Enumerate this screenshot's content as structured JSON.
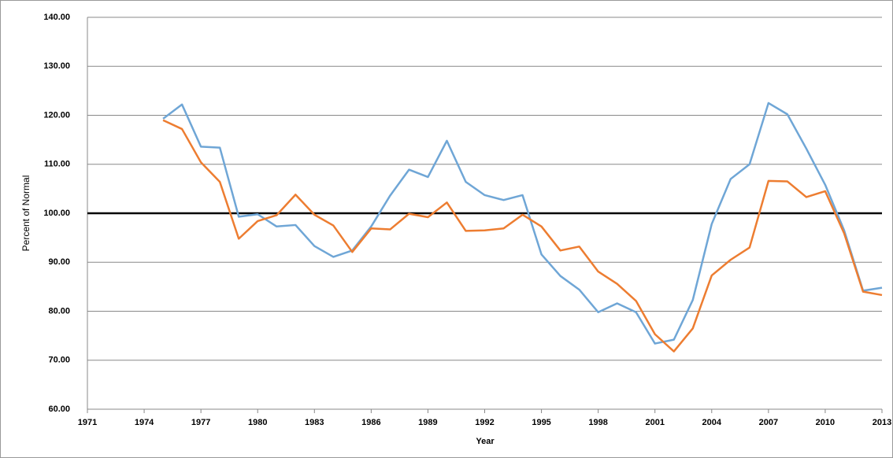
{
  "chart_data": {
    "type": "line",
    "x_label": "Year",
    "y_label": "Percent of Normal",
    "x": [
      1975,
      1976,
      1977,
      1978,
      1979,
      1980,
      1981,
      1982,
      1983,
      1984,
      1985,
      1986,
      1987,
      1988,
      1989,
      1990,
      1991,
      1992,
      1993,
      1994,
      1995,
      1996,
      1997,
      1998,
      1999,
      2000,
      2001,
      2002,
      2003,
      2004,
      2005,
      2006,
      2007,
      2008,
      2009,
      2010,
      2011,
      2012,
      2013
    ],
    "series": [
      {
        "color": "#6fa6d6",
        "values": [
          119.3,
          122.2,
          113.6,
          113.4,
          99.3,
          99.8,
          97.3,
          97.6,
          93.3,
          91.1,
          92.4,
          97.3,
          103.6,
          108.9,
          107.4,
          114.8,
          106.4,
          103.7,
          102.7,
          103.7,
          91.6,
          87.2,
          84.4,
          79.8,
          81.6,
          79.8,
          73.4,
          74.2,
          82.3,
          97.8,
          107.0,
          110.0,
          122.5,
          120.2,
          113.2,
          105.8,
          96.5,
          84.2,
          84.8
        ]
      },
      {
        "color": "#ed7d31",
        "values": [
          119.0,
          117.2,
          110.4,
          106.4,
          94.8,
          98.4,
          99.6,
          103.8,
          99.7,
          97.5,
          92.1,
          96.9,
          96.7,
          99.9,
          99.2,
          102.2,
          96.4,
          96.5,
          96.9,
          99.7,
          97.3,
          92.4,
          93.2,
          88.1,
          85.6,
          82.1,
          75.3,
          71.8,
          76.5,
          87.3,
          90.5,
          93.0,
          106.6,
          106.5,
          103.3,
          104.5,
          95.9,
          84.0,
          83.3
        ]
      }
    ],
    "xlim": [
      1971,
      2013
    ],
    "xticks": [
      1971,
      1974,
      1977,
      1980,
      1983,
      1986,
      1989,
      1992,
      1995,
      1998,
      2001,
      2004,
      2007,
      2010,
      2013
    ],
    "ylim": [
      60,
      140
    ],
    "yticks": [
      {
        "value": 60,
        "label": "60.00"
      },
      {
        "value": 70,
        "label": "70.00"
      },
      {
        "value": 80,
        "label": "80.00"
      },
      {
        "value": 90,
        "label": "90.00"
      },
      {
        "value": 100,
        "label": "100.00"
      },
      {
        "value": 110,
        "label": "110.00"
      },
      {
        "value": 120,
        "label": "120.00"
      },
      {
        "value": 130,
        "label": "130.00"
      },
      {
        "value": 140,
        "label": "140.00"
      }
    ],
    "grid": true,
    "reference_line": 100
  }
}
